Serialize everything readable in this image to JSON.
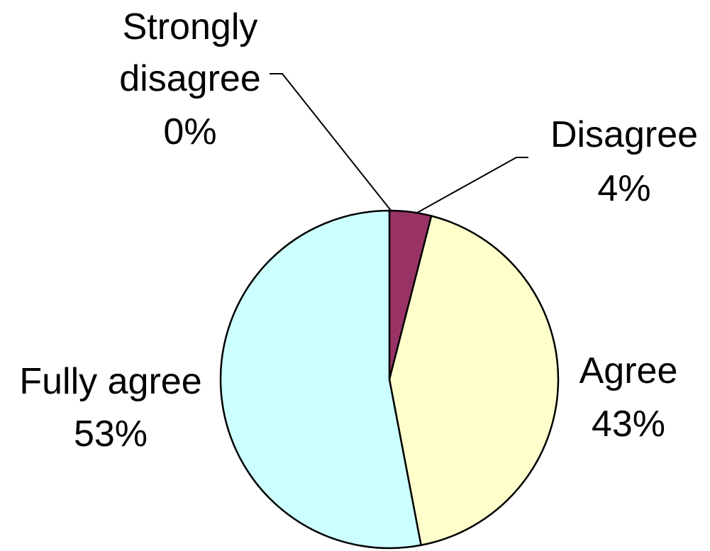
{
  "chart_data": {
    "type": "pie",
    "start": "top",
    "direction": "clockwise",
    "slices": [
      {
        "category": "Strongly disagree",
        "pct_label": "0%",
        "value": 0,
        "color": "#ffffff"
      },
      {
        "category": "Disagree",
        "pct_label": "4%",
        "value": 4,
        "color": "#993366"
      },
      {
        "category": "Agree",
        "pct_label": "43%",
        "value": 43,
        "color": "#ffffcc"
      },
      {
        "category": "Fully agree",
        "pct_label": "53%",
        "value": 53,
        "color": "#ccffff"
      }
    ]
  }
}
